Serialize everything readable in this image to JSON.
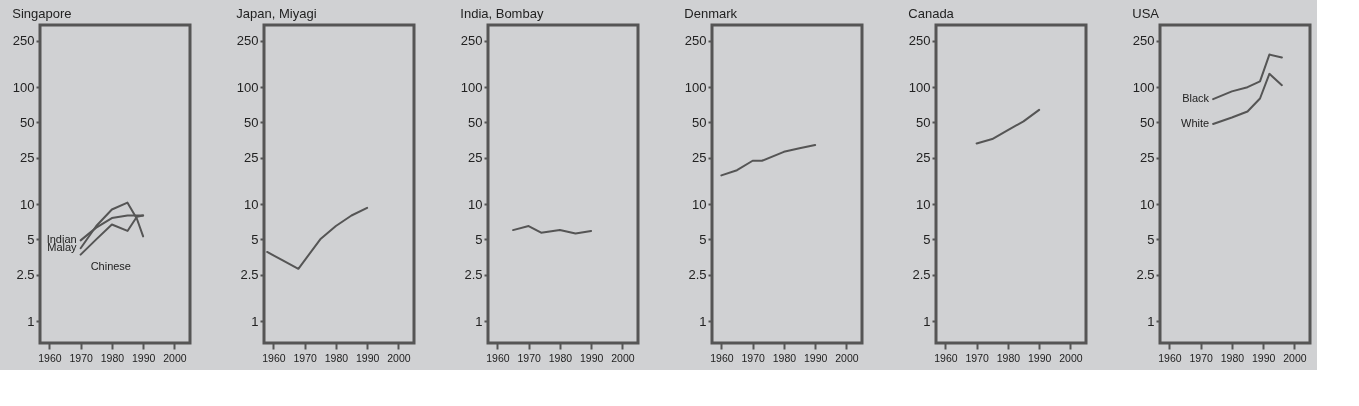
{
  "chart_data": [
    {
      "type": "line",
      "title": "Singapore",
      "xlim": [
        1957,
        2005
      ],
      "ylim": [
        0.65,
        340
      ],
      "xticks": [
        1960,
        1970,
        1980,
        1990,
        2000
      ],
      "yticks": [
        1,
        2.5,
        5,
        10,
        25,
        50,
        100,
        250
      ],
      "log": "y",
      "grid": false,
      "series": [
        {
          "name": "Indian",
          "color": "#555555",
          "x": [
            1970,
            1975,
            1980,
            1985,
            1990
          ],
          "values": [
            4.9,
            6.3,
            7.6,
            8,
            8
          ]
        },
        {
          "name": "Malay",
          "color": "#555555",
          "x": [
            1970,
            1975,
            1980,
            1985,
            1988,
            1990
          ],
          "values": [
            4.2,
            6.5,
            9,
            10.3,
            7.5,
            5.3
          ]
        },
        {
          "name": "Chinese",
          "color": "#555555",
          "x": [
            1970,
            1975,
            1980,
            1985,
            1988,
            1990
          ],
          "values": [
            3.7,
            5,
            6.7,
            5.9,
            7.8,
            8
          ]
        }
      ]
    },
    {
      "type": "line",
      "title": "Japan, Miyagi",
      "xlim": [
        1957,
        2005
      ],
      "ylim": [
        0.65,
        340
      ],
      "xticks": [
        1960,
        1970,
        1980,
        1990,
        2000
      ],
      "yticks": [
        1,
        2.5,
        5,
        10,
        25,
        50,
        100,
        250
      ],
      "log": "y",
      "grid": false,
      "series": [
        {
          "color": "#555555",
          "x": [
            1958,
            1963,
            1968,
            1975,
            1980,
            1985,
            1990
          ],
          "values": [
            3.9,
            3.3,
            2.8,
            5,
            6.5,
            8,
            9.3
          ]
        }
      ]
    },
    {
      "type": "line",
      "title": "India, Bombay",
      "xlim": [
        1957,
        2005
      ],
      "ylim": [
        0.65,
        340
      ],
      "xticks": [
        1960,
        1970,
        1980,
        1990,
        2000
      ],
      "yticks": [
        1,
        2.5,
        5,
        10,
        25,
        50,
        100,
        250
      ],
      "log": "y",
      "grid": false,
      "series": [
        {
          "color": "#555555",
          "x": [
            1965,
            1970,
            1974,
            1980,
            1985,
            1990
          ],
          "values": [
            6,
            6.5,
            5.7,
            6,
            5.6,
            5.9
          ]
        }
      ]
    },
    {
      "type": "line",
      "title": "Denmark",
      "xlim": [
        1957,
        2005
      ],
      "ylim": [
        0.65,
        340
      ],
      "xticks": [
        1960,
        1970,
        1980,
        1990,
        2000
      ],
      "yticks": [
        1,
        2.5,
        5,
        10,
        25,
        50,
        100,
        250
      ],
      "log": "y",
      "grid": false,
      "series": [
        {
          "color": "#555555",
          "x": [
            1960,
            1965,
            1970,
            1973,
            1980,
            1985,
            1990
          ],
          "values": [
            17.6,
            19.5,
            23.5,
            23.5,
            28,
            30,
            32
          ]
        }
      ]
    },
    {
      "type": "line",
      "title": "Canada",
      "xlim": [
        1957,
        2005
      ],
      "ylim": [
        0.65,
        340
      ],
      "xticks": [
        1960,
        1970,
        1980,
        1990,
        2000
      ],
      "yticks": [
        1,
        2.5,
        5,
        10,
        25,
        50,
        100,
        250
      ],
      "log": "y",
      "grid": false,
      "series": [
        {
          "color": "#555555",
          "x": [
            1970,
            1975,
            1980,
            1985,
            1990
          ],
          "values": [
            33,
            36,
            43,
            51,
            64
          ]
        }
      ]
    },
    {
      "type": "line",
      "title": "USA",
      "xlim": [
        1957,
        2005
      ],
      "ylim": [
        0.65,
        340
      ],
      "xticks": [
        1960,
        1970,
        1980,
        1990,
        2000
      ],
      "yticks": [
        1,
        2.5,
        5,
        10,
        25,
        50,
        100,
        250
      ],
      "log": "y",
      "grid": false,
      "series": [
        {
          "name": "Black",
          "color": "#555555",
          "x": [
            1974,
            1980,
            1985,
            1989,
            1992,
            1996
          ],
          "values": [
            79,
            92,
            100,
            112,
            190,
            179
          ]
        },
        {
          "name": "White",
          "color": "#555555",
          "x": [
            1974,
            1980,
            1985,
            1989,
            1992,
            1996
          ],
          "values": [
            48.5,
            55,
            62,
            80,
            130,
            104
          ]
        }
      ]
    }
  ]
}
